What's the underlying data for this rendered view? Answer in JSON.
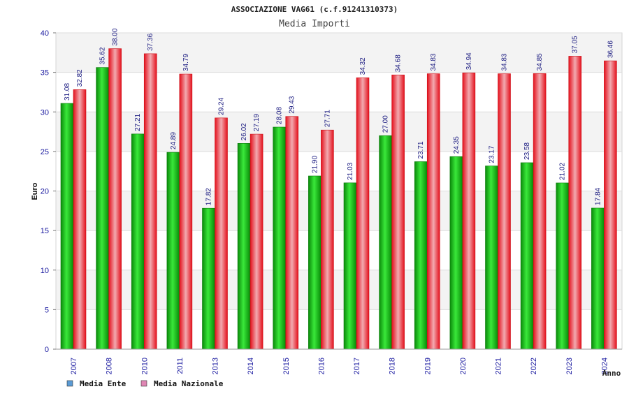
{
  "chart_data": {
    "type": "bar",
    "title": "ASSOCIAZIONE VAG61 (c.f.91241310373)",
    "subtitle": "Media Importi",
    "xlabel": "Anno",
    "ylabel": "Euro",
    "ylim": [
      0,
      40
    ],
    "yticks": [
      0,
      5,
      10,
      15,
      20,
      25,
      30,
      35,
      40
    ],
    "grid": true,
    "legend_position": "bottom-left",
    "categories": [
      "2007",
      "2008",
      "2010",
      "2011",
      "2013",
      "2014",
      "2015",
      "2016",
      "2017",
      "2018",
      "2019",
      "2020",
      "2021",
      "2022",
      "2023",
      "2024"
    ],
    "series": [
      {
        "name": "Media Ente",
        "color": "#16b016",
        "legend_color": "#5b9bd5",
        "values": [
          31.08,
          35.62,
          27.21,
          24.89,
          17.82,
          26.02,
          28.08,
          21.9,
          21.03,
          27.0,
          23.71,
          24.35,
          23.17,
          23.58,
          21.02,
          17.84
        ],
        "labels": [
          "31.08",
          "35.62",
          "27.21",
          "24.89",
          "17.82",
          "26.02",
          "28.08",
          "21.90",
          "21.03",
          "27.00",
          "23.71",
          "24.35",
          "23.17",
          "23.58",
          "21.02",
          "17.84"
        ]
      },
      {
        "name": "Media Nazionale",
        "color": "#e8202a",
        "legend_color": "#e086b4",
        "values": [
          32.82,
          38.0,
          37.36,
          34.79,
          29.24,
          27.19,
          29.43,
          27.71,
          34.32,
          34.68,
          34.83,
          34.94,
          34.83,
          34.85,
          37.05,
          36.46
        ],
        "labels": [
          "32.82",
          "38.00",
          "37.36",
          "34.79",
          "29.24",
          "27.19",
          "29.43",
          "27.71",
          "34.32",
          "34.68",
          "34.83",
          "34.94",
          "34.83",
          "34.85",
          "37.05",
          "36.46"
        ]
      }
    ]
  }
}
